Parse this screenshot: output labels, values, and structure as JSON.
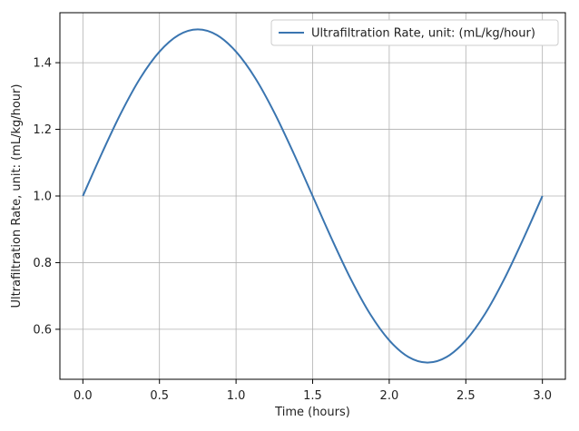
{
  "chart_data": {
    "type": "line",
    "title": "",
    "xlabel": "Time (hours)",
    "ylabel": "Ultrafiltration Rate, unit: (mL/kg/hour)",
    "xlim": [
      -0.15,
      3.15
    ],
    "ylim": [
      0.45,
      1.55
    ],
    "grid": true,
    "legend_position": "top-right",
    "x_ticks": [
      0.0,
      0.5,
      1.0,
      1.5,
      2.0,
      2.5,
      3.0
    ],
    "x_tick_labels": [
      "0.0",
      "0.5",
      "1.0",
      "1.5",
      "2.0",
      "2.5",
      "3.0"
    ],
    "y_ticks": [
      0.6,
      0.8,
      1.0,
      1.2,
      1.4
    ],
    "y_tick_labels": [
      "0.6",
      "0.8",
      "1.0",
      "1.2",
      "1.4"
    ],
    "series": [
      {
        "name": "Ultrafiltration Rate, unit: (mL/kg/hour)",
        "color": "#3a75b0",
        "x": [
          0.0,
          0.125,
          0.25,
          0.375,
          0.5,
          0.625,
          0.75,
          0.875,
          1.0,
          1.125,
          1.25,
          1.375,
          1.5,
          1.625,
          1.75,
          1.875,
          2.0,
          2.125,
          2.25,
          2.375,
          2.5,
          2.625,
          2.75,
          2.875,
          3.0
        ],
        "y": [
          1.0,
          1.129,
          1.25,
          1.354,
          1.433,
          1.483,
          1.5,
          1.483,
          1.433,
          1.354,
          1.25,
          1.129,
          1.0,
          0.871,
          0.75,
          0.646,
          0.567,
          0.517,
          0.5,
          0.517,
          0.567,
          0.646,
          0.75,
          0.871,
          1.0
        ]
      }
    ]
  }
}
